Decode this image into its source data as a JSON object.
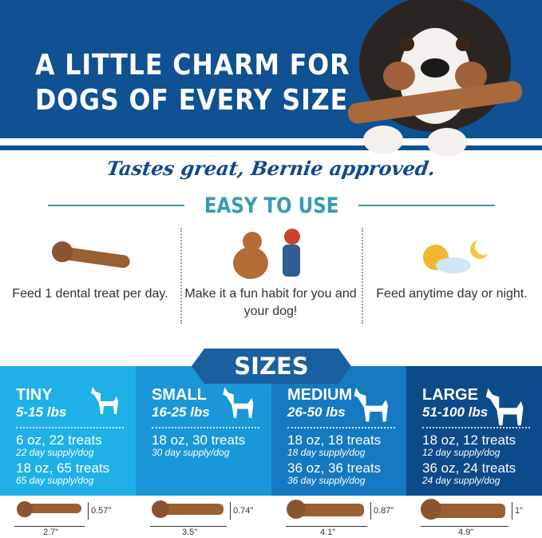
{
  "header": {
    "title_line1": "A LITTLE CHARM FOR",
    "title_line2": "DOGS OF EVERY SIZE"
  },
  "tagline": "Tastes great, Bernie approved.",
  "easy": {
    "heading": "EASY TO USE",
    "items": [
      {
        "icon": "dental-treat-icon",
        "text": "Feed 1 dental treat per day."
      },
      {
        "icon": "high-five-dog-icon",
        "text": "Make it a fun habit for you and your dog!"
      },
      {
        "icon": "sun-moon-icon",
        "text": "Feed anytime day or night."
      }
    ]
  },
  "sizes": {
    "heading": "SIZES",
    "panels": [
      {
        "name": "TINY",
        "lbs": "5-15 lbs",
        "color": "#1fb0e8",
        "packs": [
          {
            "main": "6 oz, 22 treats",
            "sub": "22 day supply/dog"
          },
          {
            "main": "18 oz, 65 treats",
            "sub": "65 day supply/dog"
          }
        ],
        "length": "2.7\"",
        "height": "0.57\""
      },
      {
        "name": "SMALL",
        "lbs": "16-25 lbs",
        "color": "#1a97d9",
        "packs": [
          {
            "main": "18 oz, 30 treats",
            "sub": "30 day supply/dog"
          }
        ],
        "length": "3.5\"",
        "height": "0.74\""
      },
      {
        "name": "MEDIUM",
        "lbs": "26-50 lbs",
        "color": "#1479c1",
        "packs": [
          {
            "main": "18 oz, 18 treats",
            "sub": "18 day supply/dog"
          },
          {
            "main": "36 oz, 36 treats",
            "sub": "36 day supply/dog"
          }
        ],
        "length": "4.1\"",
        "height": "0.87\""
      },
      {
        "name": "LARGE",
        "lbs": "51-100 lbs",
        "color": "#0d4a8a",
        "packs": [
          {
            "main": "18 oz, 12 treats",
            "sub": "12 day supply/dog"
          },
          {
            "main": "36 oz, 24 treats",
            "sub": "24 day supply/dog"
          }
        ],
        "length": "4.9\"",
        "height": "1\""
      }
    ]
  }
}
